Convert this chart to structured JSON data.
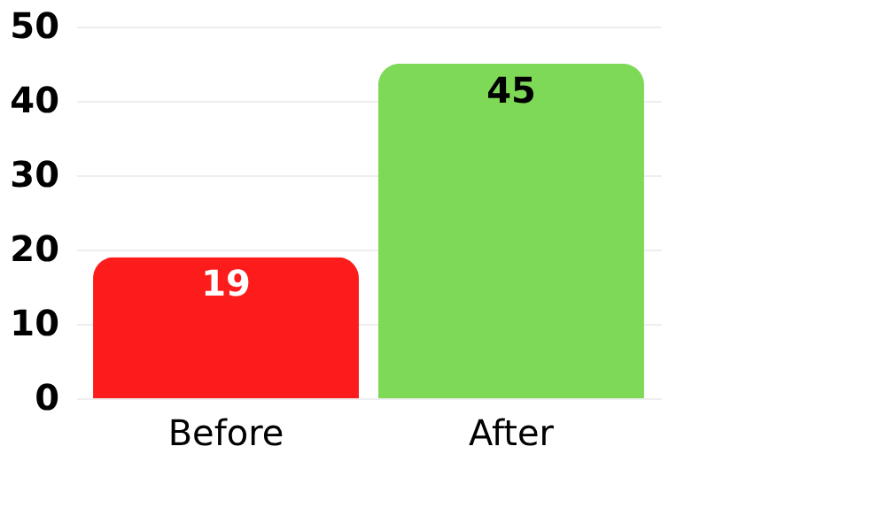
{
  "chart_data": {
    "type": "bar",
    "categories": [
      "Before",
      "After"
    ],
    "values": [
      19,
      45
    ],
    "colors": [
      "#fc1c1c",
      "#7ed957"
    ],
    "ylim": [
      0,
      50
    ],
    "yticks": [
      0,
      10,
      20,
      30,
      40,
      50
    ],
    "grid": "y",
    "data_labels": true
  }
}
